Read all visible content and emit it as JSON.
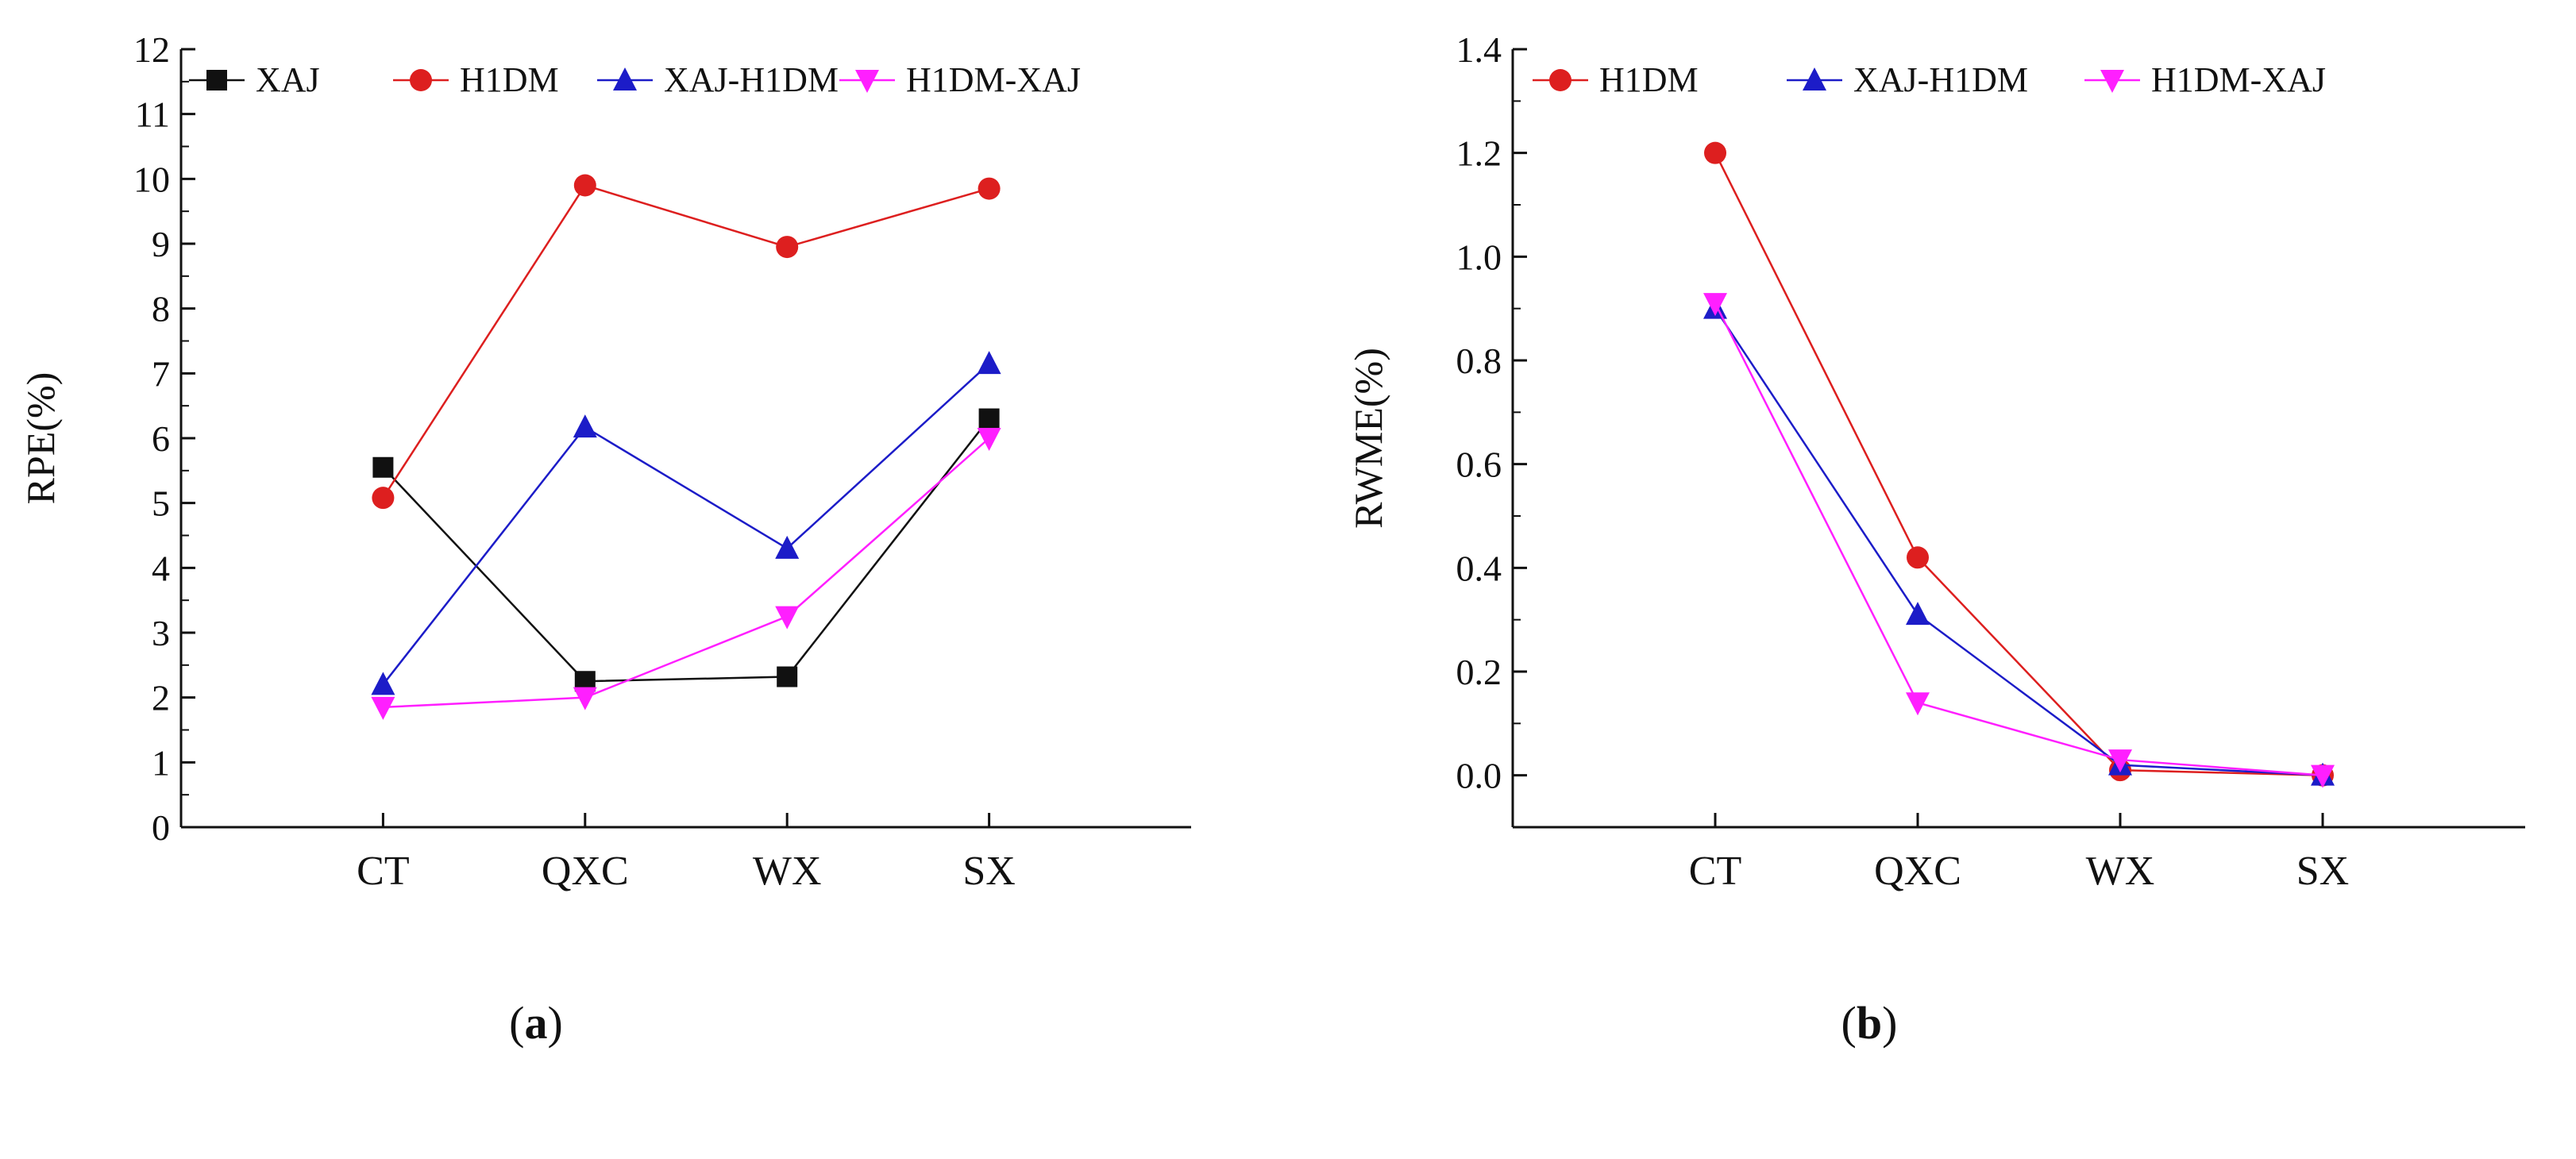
{
  "chart_data": [
    {
      "panel": "a",
      "type": "line",
      "categories": [
        "CT",
        "QXC",
        "WX",
        "SX"
      ],
      "ylabel": "RPE(%)",
      "xlabel": "",
      "ylim": [
        0,
        12
      ],
      "yticks": [
        0,
        1,
        2,
        3,
        4,
        5,
        6,
        7,
        8,
        9,
        10,
        11,
        12
      ],
      "ytick_labels": [
        "0",
        "1",
        "2",
        "3",
        "4",
        "5",
        "6",
        "7",
        "8",
        "9",
        "10",
        "11",
        "12"
      ],
      "legend_position": "top",
      "series": [
        {
          "name": "XAJ",
          "color": "#111111",
          "marker": "square",
          "values": [
            5.55,
            2.25,
            2.32,
            6.3
          ]
        },
        {
          "name": "H1DM",
          "color": "#dd1f1f",
          "marker": "circle",
          "values": [
            5.08,
            9.9,
            8.95,
            9.85
          ]
        },
        {
          "name": "XAJ-H1DM",
          "color": "#1c1cc8",
          "marker": "triangle-up",
          "values": [
            2.2,
            6.17,
            4.3,
            7.15
          ]
        },
        {
          "name": "H1DM-XAJ",
          "color": "#ff1fff",
          "marker": "triangle-down",
          "values": [
            1.85,
            2.0,
            3.25,
            6.0
          ]
        }
      ]
    },
    {
      "panel": "b",
      "type": "line",
      "categories": [
        "CT",
        "QXC",
        "WX",
        "SX"
      ],
      "ylabel": "RWME(%)",
      "xlabel": "",
      "ylim": [
        -0.1,
        1.4
      ],
      "yticks": [
        0.0,
        0.2,
        0.4,
        0.6,
        0.8,
        1.0,
        1.2,
        1.4
      ],
      "ytick_labels": [
        "0.0",
        "0.2",
        "0.4",
        "0.6",
        "0.8",
        "1.0",
        "1.2",
        "1.4"
      ],
      "legend_position": "top",
      "series": [
        {
          "name": "H1DM",
          "color": "#dd1f1f",
          "marker": "circle",
          "values": [
            1.2,
            0.42,
            0.01,
            0.0
          ]
        },
        {
          "name": "XAJ-H1DM",
          "color": "#1c1cc8",
          "marker": "triangle-up",
          "values": [
            0.9,
            0.31,
            0.02,
            0.0
          ]
        },
        {
          "name": "H1DM-XAJ",
          "color": "#ff1fff",
          "marker": "triangle-down",
          "values": [
            0.91,
            0.14,
            0.03,
            0.0
          ]
        }
      ]
    }
  ],
  "captions": {
    "a": "a",
    "b": "b"
  }
}
